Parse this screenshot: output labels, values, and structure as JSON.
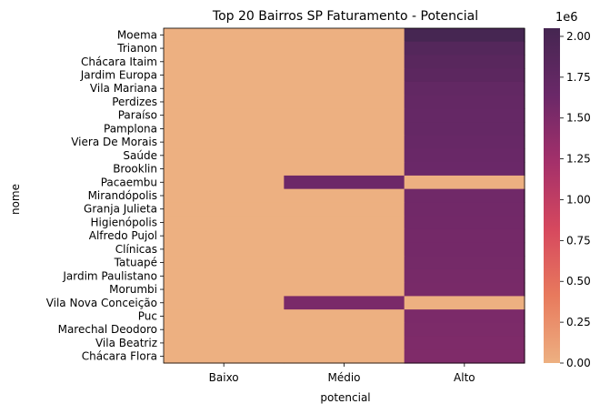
{
  "chart_data": {
    "type": "heatmap",
    "title": "Top 20 Bairros SP Faturamento - Potencial",
    "xlabel": "potencial",
    "ylabel": "nome",
    "x_categories": [
      "Baixo",
      "Médio",
      "Alto"
    ],
    "y_categories": [
      "Moema",
      "Trianon",
      "Chácara Itaim",
      "Jardim Europa",
      "Vila Mariana",
      "Perdizes",
      "Paraíso",
      "Pamplona",
      "Viera De Morais",
      "Saúde",
      "Brooklin",
      "Pacaembu",
      "Mirandópolis",
      "Granja Julieta",
      "Higienópolis",
      "Alfredo Pujol",
      "Clínicas",
      "Tatuapé",
      "Jardim Paulistano",
      "Morumbi",
      "Vila Nova Conceição",
      "Puc",
      "Marechal Deodoro",
      "Vila Beatriz",
      "Chácara Flora"
    ],
    "values": [
      [
        0,
        0,
        2040000
      ],
      [
        0,
        0,
        1880000
      ],
      [
        0,
        0,
        1830000
      ],
      [
        0,
        0,
        1800000
      ],
      [
        0,
        0,
        1730000
      ],
      [
        0,
        0,
        1710000
      ],
      [
        0,
        0,
        1700000
      ],
      [
        0,
        0,
        1690000
      ],
      [
        0,
        0,
        1670000
      ],
      [
        0,
        0,
        1650000
      ],
      [
        0,
        0,
        1640000
      ],
      [
        0,
        1620000,
        0
      ],
      [
        0,
        0,
        1600000
      ],
      [
        0,
        0,
        1590000
      ],
      [
        0,
        0,
        1580000
      ],
      [
        0,
        0,
        1570000
      ],
      [
        0,
        0,
        1570000
      ],
      [
        0,
        0,
        1560000
      ],
      [
        0,
        0,
        1550000
      ],
      [
        0,
        0,
        1540000
      ],
      [
        0,
        1530000,
        0
      ],
      [
        0,
        0,
        1520000
      ],
      [
        0,
        0,
        1510000
      ],
      [
        0,
        0,
        1500000
      ],
      [
        0,
        0,
        1490000
      ]
    ],
    "colorbar": {
      "min": 0,
      "max": 2050000,
      "ticks": [
        "0.00",
        "0.25",
        "0.50",
        "0.75",
        "1.00",
        "1.25",
        "1.50",
        "1.75",
        "2.00"
      ],
      "tick_values": [
        0,
        250000,
        500000,
        750000,
        1000000,
        1250000,
        1500000,
        1750000,
        2000000
      ],
      "exponent_label": "1e6"
    },
    "colors": [
      "#edb081",
      "#e87a5d",
      "#d6485e",
      "#a4306a",
      "#6a2868",
      "#452651"
    ]
  }
}
